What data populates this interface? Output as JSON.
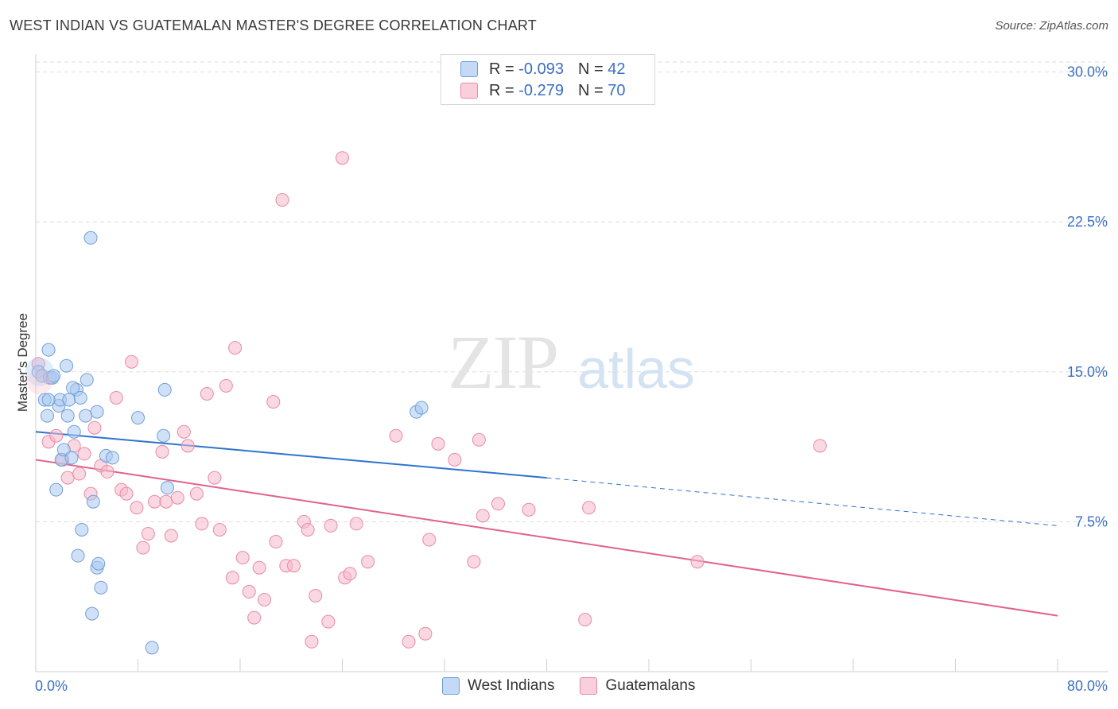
{
  "title": "WEST INDIAN VS GUATEMALAN MASTER'S DEGREE CORRELATION CHART",
  "source": "Source: ZipAtlas.com",
  "watermark_zip": "ZIP",
  "watermark_atlas": "atlas",
  "legend": {
    "rows": [
      {
        "r_label": "R = ",
        "r_value": "-0.093",
        "n_label": "N = ",
        "n_value": "42"
      },
      {
        "r_label": "R = ",
        "r_value": "-0.279",
        "n_label": "N = ",
        "n_value": "70"
      }
    ]
  },
  "bottom_legend": [
    "West Indians",
    "Guatemalans"
  ],
  "colors": {
    "blue_fill": "#a9c8f0",
    "blue_stroke": "#6f9fd8",
    "blue_line": "#2f73d0",
    "pink_fill": "#f6b8cb",
    "pink_stroke": "#e88aa8",
    "pink_line": "#e0628c",
    "axis_label": "#3b6fc4",
    "grid": "#dddddd"
  },
  "chart_data": {
    "type": "scatter",
    "title": "WEST INDIAN VS GUATEMALAN MASTER'S DEGREE CORRELATION CHART",
    "xlabel": "",
    "ylabel": "Master's Degree",
    "xlim": [
      0,
      80
    ],
    "ylim": [
      0,
      30.5
    ],
    "x_tick_labels": [
      "0.0%",
      "80.0%"
    ],
    "y_ticks": [
      7.5,
      15.0,
      22.5,
      30.0
    ],
    "y_tick_labels": [
      "7.5%",
      "15.0%",
      "22.5%",
      "30.0%"
    ],
    "series": [
      {
        "name": "West Indians",
        "R": -0.093,
        "N": 42,
        "trend": {
          "x0": 0,
          "y0": 12.0,
          "x1": 40,
          "y1": 9.7,
          "dash_to_x": 80,
          "dash_to_y": 7.3
        },
        "points": [
          [
            0.2,
            15.0
          ],
          [
            0.5,
            14.8
          ],
          [
            0.7,
            13.6
          ],
          [
            0.9,
            12.8
          ],
          [
            1.0,
            16.1
          ],
          [
            1.1,
            14.7
          ],
          [
            1.3,
            14.7
          ],
          [
            1.4,
            14.8
          ],
          [
            1.6,
            9.1
          ],
          [
            1.8,
            13.3
          ],
          [
            1.9,
            13.6
          ],
          [
            2.0,
            10.6
          ],
          [
            2.2,
            11.1
          ],
          [
            2.4,
            15.3
          ],
          [
            2.5,
            12.8
          ],
          [
            2.6,
            13.6
          ],
          [
            2.8,
            10.7
          ],
          [
            3.0,
            12.0
          ],
          [
            3.2,
            14.1
          ],
          [
            3.3,
            5.8
          ],
          [
            3.5,
            13.7
          ],
          [
            3.6,
            7.1
          ],
          [
            3.9,
            12.8
          ],
          [
            4.0,
            14.6
          ],
          [
            4.4,
            2.9
          ],
          [
            4.5,
            8.5
          ],
          [
            4.3,
            21.7
          ],
          [
            4.8,
            13.0
          ],
          [
            4.8,
            5.2
          ],
          [
            4.9,
            5.4
          ],
          [
            5.1,
            4.2
          ],
          [
            5.5,
            10.8
          ],
          [
            6.0,
            10.7
          ],
          [
            8.0,
            12.7
          ],
          [
            9.1,
            1.2
          ],
          [
            10.0,
            11.8
          ],
          [
            10.1,
            14.1
          ],
          [
            10.3,
            9.2
          ],
          [
            29.8,
            13.0
          ],
          [
            30.2,
            13.2
          ],
          [
            1.0,
            13.6
          ],
          [
            2.9,
            14.2
          ]
        ]
      },
      {
        "name": "Guatemalans",
        "R": -0.279,
        "N": 70,
        "trend": {
          "x0": 0,
          "y0": 10.6,
          "x1": 80,
          "y1": 2.8
        },
        "points": [
          [
            0.2,
            15.4
          ],
          [
            1.0,
            11.5
          ],
          [
            1.6,
            11.8
          ],
          [
            2.1,
            10.6
          ],
          [
            2.5,
            9.7
          ],
          [
            3.0,
            11.3
          ],
          [
            3.4,
            9.9
          ],
          [
            3.8,
            10.9
          ],
          [
            4.3,
            8.9
          ],
          [
            4.6,
            12.2
          ],
          [
            5.1,
            10.3
          ],
          [
            5.6,
            10.0
          ],
          [
            6.3,
            13.7
          ],
          [
            6.7,
            9.1
          ],
          [
            7.1,
            8.9
          ],
          [
            7.5,
            15.5
          ],
          [
            7.9,
            8.2
          ],
          [
            8.4,
            6.2
          ],
          [
            8.8,
            6.9
          ],
          [
            9.3,
            8.5
          ],
          [
            9.9,
            11.0
          ],
          [
            10.2,
            8.5
          ],
          [
            10.6,
            6.8
          ],
          [
            11.1,
            8.7
          ],
          [
            11.6,
            12.0
          ],
          [
            11.9,
            11.3
          ],
          [
            12.6,
            8.9
          ],
          [
            13.0,
            7.4
          ],
          [
            13.4,
            13.9
          ],
          [
            14.0,
            9.7
          ],
          [
            14.4,
            7.1
          ],
          [
            14.9,
            14.3
          ],
          [
            15.4,
            4.7
          ],
          [
            15.6,
            16.2
          ],
          [
            16.2,
            5.7
          ],
          [
            16.7,
            4.0
          ],
          [
            17.1,
            2.7
          ],
          [
            17.5,
            5.2
          ],
          [
            17.9,
            3.6
          ],
          [
            18.6,
            13.5
          ],
          [
            18.8,
            6.5
          ],
          [
            19.3,
            23.6
          ],
          [
            19.6,
            5.3
          ],
          [
            20.2,
            5.3
          ],
          [
            21.0,
            7.5
          ],
          [
            21.3,
            7.1
          ],
          [
            21.6,
            1.5
          ],
          [
            21.9,
            3.8
          ],
          [
            22.9,
            2.5
          ],
          [
            23.1,
            7.3
          ],
          [
            24.0,
            25.7
          ],
          [
            24.2,
            4.7
          ],
          [
            24.6,
            4.9
          ],
          [
            25.1,
            7.4
          ],
          [
            26.0,
            5.5
          ],
          [
            28.2,
            11.8
          ],
          [
            29.2,
            1.5
          ],
          [
            30.5,
            1.9
          ],
          [
            30.8,
            6.6
          ],
          [
            31.5,
            11.4
          ],
          [
            32.8,
            10.6
          ],
          [
            34.3,
            5.5
          ],
          [
            34.7,
            11.6
          ],
          [
            35.0,
            7.8
          ],
          [
            36.2,
            8.4
          ],
          [
            38.6,
            8.1
          ],
          [
            43.0,
            2.6
          ],
          [
            43.3,
            8.2
          ],
          [
            51.8,
            5.5
          ],
          [
            61.4,
            11.3
          ]
        ]
      }
    ]
  }
}
